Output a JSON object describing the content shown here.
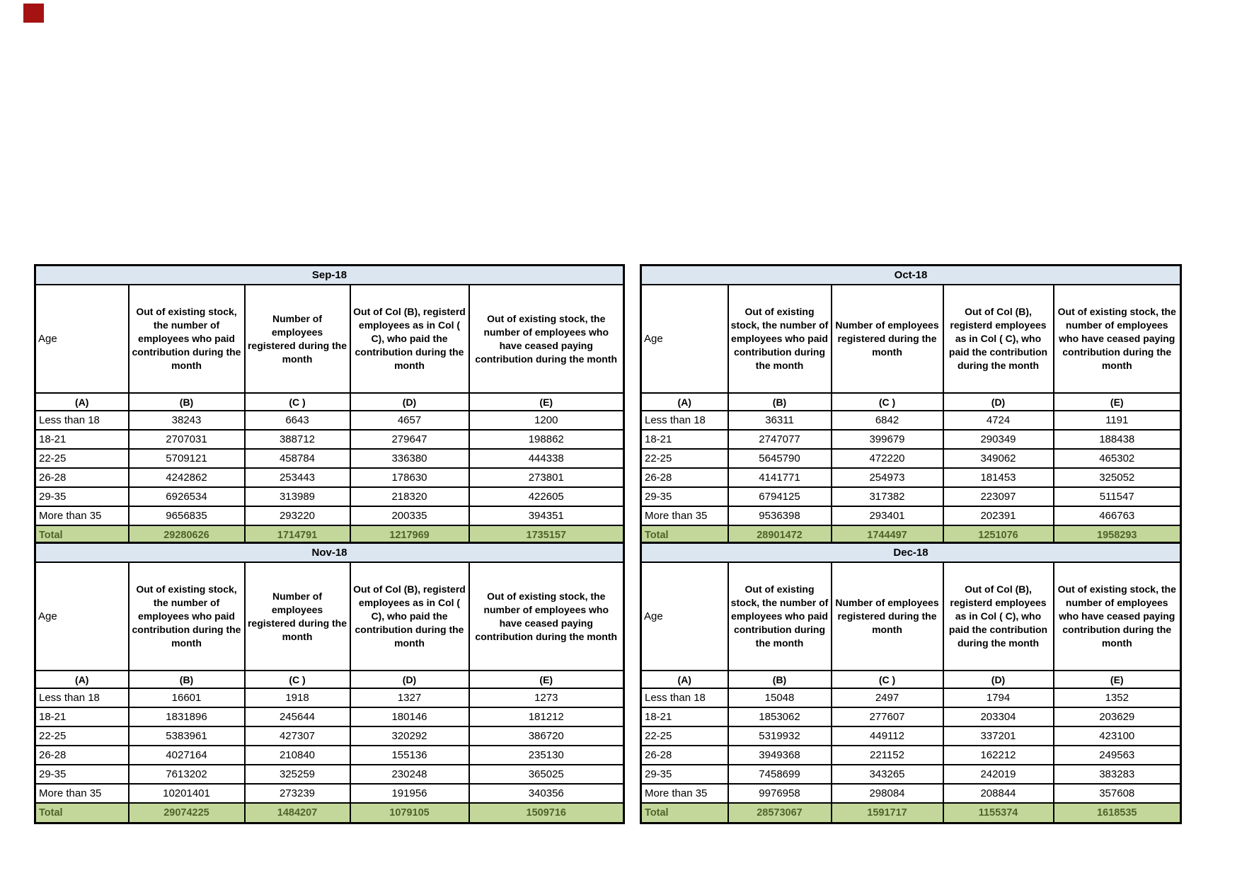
{
  "artifact": {
    "name": "red-clipped-icon",
    "color": "#a51212"
  },
  "colors": {
    "title_bg": "#dce6f1",
    "total_bg": "#c4d79b",
    "total_text": "#4f6228",
    "border": "#000000"
  },
  "chart_data": [
    {
      "type": "table",
      "title": "Sep-18",
      "columns": [
        "Age",
        "Out of existing stock, the number of employees who paid contribution during the month",
        "Number of employees registered during the month",
        "Out of Col (B), registerd employees as in Col ( C), who paid the contribution during the month",
        "Out of existing stock, the number of employees who have ceased paying contribution during the month"
      ],
      "column_letters": [
        "(A)",
        "(B)",
        "(C )",
        "(D)",
        "(E)"
      ],
      "rows": [
        [
          "Less than 18",
          38243,
          6643,
          4657,
          1200
        ],
        [
          "18-21",
          2707031,
          388712,
          279647,
          198862
        ],
        [
          "22-25",
          5709121,
          458784,
          336380,
          444338
        ],
        [
          "26-28",
          4242862,
          253443,
          178630,
          273801
        ],
        [
          "29-35",
          6926534,
          313989,
          218320,
          422605
        ],
        [
          "More than 35",
          9656835,
          293220,
          200335,
          394351
        ]
      ],
      "total": [
        "Total",
        29280626,
        1714791,
        1217969,
        1735157
      ]
    },
    {
      "type": "table",
      "title": "Oct-18",
      "columns": [
        "Age",
        "Out of existing stock, the number of employees who paid contribution during the month",
        "Number of employees registered during the month",
        "Out of Col (B), registerd employees as in Col ( C), who paid the contribution during the month",
        "Out of existing stock, the number of employees who have ceased paying contribution during the month"
      ],
      "column_letters": [
        "(A)",
        "(B)",
        "(C )",
        "(D)",
        "(E)"
      ],
      "rows": [
        [
          "Less than 18",
          36311,
          6842,
          4724,
          1191
        ],
        [
          "18-21",
          2747077,
          399679,
          290349,
          188438
        ],
        [
          "22-25",
          5645790,
          472220,
          349062,
          465302
        ],
        [
          "26-28",
          4141771,
          254973,
          181453,
          325052
        ],
        [
          "29-35",
          6794125,
          317382,
          223097,
          511547
        ],
        [
          "More than 35",
          9536398,
          293401,
          202391,
          466763
        ]
      ],
      "total": [
        "Total",
        28901472,
        1744497,
        1251076,
        1958293
      ]
    },
    {
      "type": "table",
      "title": "Nov-18",
      "columns": [
        "Age",
        "Out of existing stock, the number of employees who paid contribution during the month",
        "Number of employees registered during the month",
        "Out of Col (B), registerd employees as in Col ( C), who paid the contribution during the month",
        "Out of existing stock, the number of employees who have ceased paying contribution during the month"
      ],
      "column_letters": [
        "(A)",
        "(B)",
        "(C )",
        "(D)",
        "(E)"
      ],
      "rows": [
        [
          "Less than 18",
          16601,
          1918,
          1327,
          1273
        ],
        [
          "18-21",
          1831896,
          245644,
          180146,
          181212
        ],
        [
          "22-25",
          5383961,
          427307,
          320292,
          386720
        ],
        [
          "26-28",
          4027164,
          210840,
          155136,
          235130
        ],
        [
          "29-35",
          7613202,
          325259,
          230248,
          365025
        ],
        [
          "More than 35",
          10201401,
          273239,
          191956,
          340356
        ]
      ],
      "total": [
        "Total",
        29074225,
        1484207,
        1079105,
        1509716
      ]
    },
    {
      "type": "table",
      "title": "Dec-18",
      "columns": [
        "Age",
        "Out of existing stock, the number of employees who paid contribution during the month",
        "Number of employees registered during the month",
        "Out of Col (B), registerd employees as in Col ( C), who paid the contribution during the month",
        "Out of existing stock, the number of employees who have ceased paying contribution during the month"
      ],
      "column_letters": [
        "(A)",
        "(B)",
        "(C )",
        "(D)",
        "(E)"
      ],
      "rows": [
        [
          "Less than 18",
          15048,
          2497,
          1794,
          1352
        ],
        [
          "18-21",
          1853062,
          277607,
          203304,
          203629
        ],
        [
          "22-25",
          5319932,
          449112,
          337201,
          423100
        ],
        [
          "26-28",
          3949368,
          221152,
          162212,
          249563
        ],
        [
          "29-35",
          7458699,
          343265,
          242019,
          383283
        ],
        [
          "More than 35",
          9976958,
          298084,
          208844,
          357608
        ]
      ],
      "total": [
        "Total",
        28573067,
        1591717,
        1155374,
        1618535
      ]
    }
  ]
}
